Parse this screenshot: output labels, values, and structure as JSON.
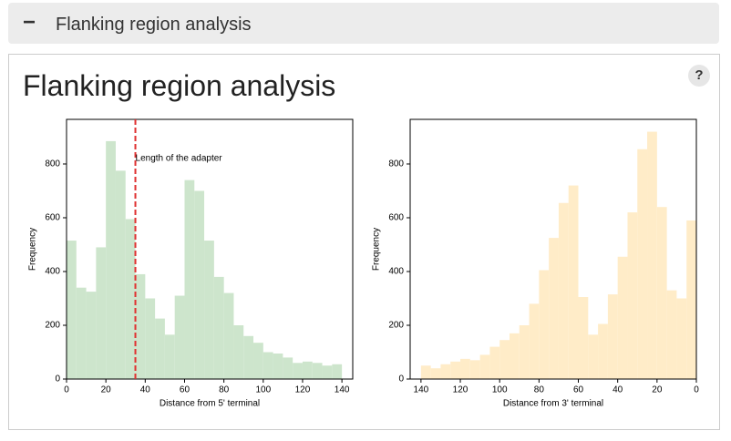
{
  "header": {
    "toggle": "−",
    "title": "Flanking region analysis"
  },
  "panel": {
    "title": "Flanking region analysis",
    "help": "?"
  },
  "chart_data": [
    {
      "type": "histogram",
      "xlabel": "Distance from 5' terminal",
      "ylabel": "Frequency",
      "color": "#cde5cc",
      "bins": [
        0,
        5,
        10,
        15,
        20,
        25,
        30,
        35,
        40,
        45,
        50,
        55,
        60,
        65,
        70,
        75,
        80,
        85,
        90,
        95,
        100,
        105,
        110,
        115,
        120,
        125,
        130,
        135,
        140
      ],
      "values": [
        515,
        340,
        325,
        490,
        885,
        775,
        595,
        390,
        300,
        225,
        165,
        310,
        740,
        700,
        515,
        380,
        320,
        200,
        160,
        135,
        100,
        95,
        80,
        60,
        65,
        60,
        50,
        55
      ],
      "xlim": [
        0,
        145.5
      ],
      "xticks": [
        0,
        20,
        40,
        60,
        80,
        100,
        120,
        140
      ],
      "ylim": [
        0,
        966
      ],
      "yticks": [
        0,
        200,
        400,
        600,
        800
      ],
      "vline": {
        "x": 35,
        "color": "#e03030",
        "label": "Length of the adapter",
        "label_y": 820
      }
    },
    {
      "type": "histogram",
      "xlabel": "Distance from 3' terminal",
      "ylabel": "Frequency",
      "color": "#ffecc8",
      "bins": [
        140,
        135,
        130,
        125,
        120,
        115,
        110,
        105,
        100,
        95,
        90,
        85,
        80,
        75,
        70,
        65,
        60,
        55,
        50,
        45,
        40,
        35,
        30,
        25,
        20,
        15,
        10,
        5,
        0
      ],
      "values": [
        50,
        40,
        55,
        65,
        75,
        70,
        90,
        120,
        145,
        170,
        200,
        280,
        405,
        525,
        655,
        720,
        305,
        165,
        205,
        315,
        455,
        620,
        855,
        920,
        640,
        330,
        300,
        590
      ],
      "xlim": [
        145.5,
        0
      ],
      "xticks": [
        140,
        120,
        100,
        80,
        60,
        40,
        20,
        0
      ],
      "ylim": [
        0,
        966
      ],
      "yticks": [
        0,
        200,
        400,
        600,
        800
      ]
    }
  ]
}
